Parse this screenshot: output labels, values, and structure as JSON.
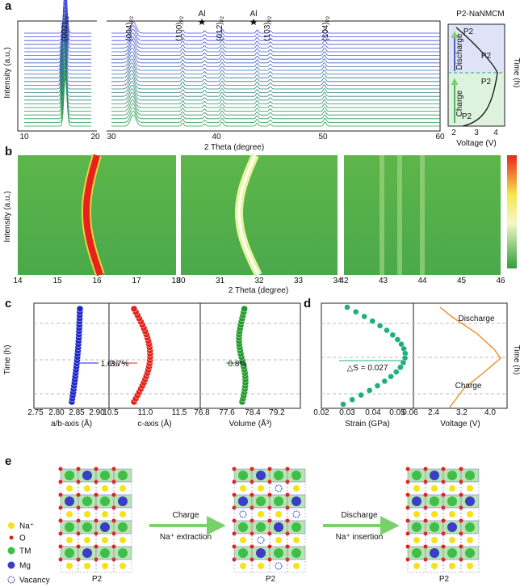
{
  "panel_a": {
    "label": "a",
    "y_label": "Intensity (a.u.)",
    "x_label": "2 Theta (degree)",
    "x_ticks": [
      "10",
      "20",
      "30",
      "40",
      "50",
      "60"
    ],
    "peaks": [
      {
        "text": "(002)",
        "sub": "P2"
      },
      {
        "text": "(004)",
        "sub": "P2"
      },
      {
        "text": "(100)",
        "sub": "P2"
      },
      {
        "text": "Al"
      },
      {
        "text": "(012)",
        "sub": "P2"
      },
      {
        "text": "Al"
      },
      {
        "text": "(103)",
        "sub": "P2"
      },
      {
        "text": "(104)",
        "sub": "P2"
      }
    ],
    "inset": {
      "title": "P2-NaNMCM",
      "x_label": "Voltage (V)",
      "x_ticks": [
        "2",
        "3",
        "4"
      ],
      "y_label": "Time (h)",
      "discharge": "Discharge",
      "charge": "Charge",
      "phases": [
        "P2",
        "P2",
        "P2",
        "P2"
      ]
    }
  },
  "panel_b": {
    "label": "b",
    "y_label": "Intensity (a.u.)",
    "x_label": "2 Theta (degree)",
    "x_ticks": [
      [
        "14",
        "15",
        "16",
        "17",
        "18"
      ],
      [
        "30",
        "31",
        "32",
        "33",
        "34"
      ],
      [
        "42",
        "43",
        "44",
        "45",
        "46"
      ]
    ]
  },
  "panel_c": {
    "label": "c",
    "y_label": "Time (h)",
    "axes": [
      {
        "label": "a/b-axis (Å)",
        "ticks": [
          "2.75",
          "2.80",
          "2.85",
          "2.90"
        ],
        "change": "1.6%"
      },
      {
        "label": "c-axis (Å)",
        "ticks": [
          "10.5",
          "11.0",
          "11.5"
        ],
        "change": "3.7%"
      },
      {
        "label": "Volume (Å³)",
        "ticks": [
          "76.8",
          "77.6",
          "78.4",
          "79.2"
        ],
        "change": "0.8%"
      }
    ]
  },
  "panel_d": {
    "label": "d",
    "y_label": "Time (h)",
    "strain": {
      "label": "Strain  (GPa)",
      "ticks": [
        "0.02",
        "0.03",
        "0.04",
        "0.05",
        "0.06"
      ],
      "annotation": "△S = 0.027"
    },
    "voltage": {
      "label": "Voltage (V)",
      "ticks": [
        "2.4",
        "3.2",
        "4.0"
      ],
      "discharge": "Discharge",
      "charge": "Charge"
    }
  },
  "panel_e": {
    "label": "e",
    "legend": [
      "Na⁺",
      "O",
      "TM",
      "Mg",
      "Vacancy"
    ],
    "structures": [
      "P2",
      "P2",
      "P2"
    ],
    "steps": [
      {
        "action": "Charge",
        "detail": "Na⁺ extraction"
      },
      {
        "action": "Discharge",
        "detail": "Na⁺ insertion"
      }
    ]
  }
}
